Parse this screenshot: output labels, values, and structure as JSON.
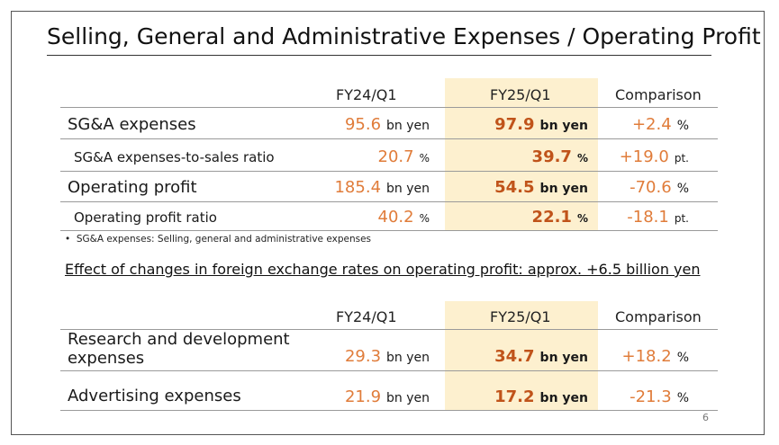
{
  "title": "Selling, General and Administrative Expenses / Operating Profit",
  "table1": {
    "headers": {
      "fy24": "FY24/Q1",
      "fy25": "FY25/Q1",
      "comparison": "Comparison"
    },
    "rows": [
      {
        "label": "SG&A expenses",
        "fy24": "95.6",
        "fy24_unit": "bn yen",
        "fy25": "97.9",
        "fy25_unit": "bn yen",
        "cmp": "+2.4",
        "cmp_unit": "%"
      },
      {
        "label": "SG&A expenses-to-sales ratio",
        "fy24": "20.7",
        "fy24_unit": "%",
        "fy25": "39.7",
        "fy25_unit": "%",
        "cmp": "+19.0",
        "cmp_unit": "pt."
      },
      {
        "label": "Operating profit",
        "fy24": "185.4",
        "fy24_unit": "bn yen",
        "fy25": "54.5",
        "fy25_unit": "bn yen",
        "cmp": "-70.6",
        "cmp_unit": "%"
      },
      {
        "label": "Operating profit ratio",
        "fy24": "40.2",
        "fy24_unit": "%",
        "fy25": "22.1",
        "fy25_unit": "%",
        "cmp": "-18.1",
        "cmp_unit": "pt."
      }
    ]
  },
  "footnote": "SG&A expenses: Selling, general and administrative expenses",
  "fx_note": "Effect of changes in foreign exchange rates on operating profit: approx. +6.5 billion yen",
  "table2": {
    "headers": {
      "fy24": "FY24/Q1",
      "fy25": "FY25/Q1",
      "comparison": "Comparison"
    },
    "rows": [
      {
        "label_line1": "Research and development",
        "label_line2": "expenses",
        "fy24": "29.3",
        "fy24_unit": "bn yen",
        "fy25": "34.7",
        "fy25_unit": "bn yen",
        "cmp": "+18.2",
        "cmp_unit": "%"
      },
      {
        "label": "Advertising expenses",
        "fy24": "21.9",
        "fy24_unit": "bn yen",
        "fy25": "17.2",
        "fy25_unit": "bn yen",
        "cmp": "-21.3",
        "cmp_unit": "%"
      }
    ]
  },
  "page_number": "6",
  "colors": {
    "accent": "#e07c3a",
    "highlight": "#fdf0cf"
  }
}
